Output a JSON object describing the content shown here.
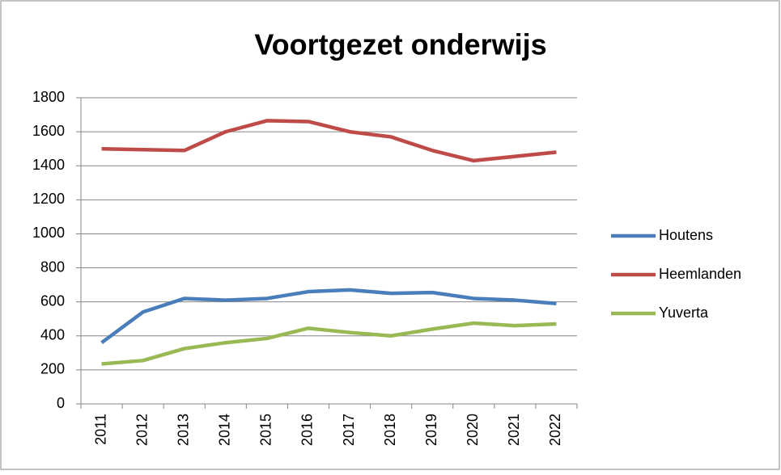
{
  "chart_data": {
    "type": "line",
    "title": "Voortgezet onderwijs",
    "categories": [
      "2011",
      "2012",
      "2013",
      "2014",
      "2015",
      "2016",
      "2017",
      "2018",
      "2019",
      "2020",
      "2021",
      "2022"
    ],
    "series": [
      {
        "name": "Houtens",
        "color": "#4a7ebb",
        "values": [
          360,
          540,
          620,
          610,
          620,
          660,
          670,
          650,
          655,
          620,
          610,
          590
        ]
      },
      {
        "name": "Heemlanden",
        "color": "#be4b48",
        "values": [
          1500,
          1495,
          1490,
          1600,
          1665,
          1660,
          1600,
          1570,
          1490,
          1430,
          1455,
          1480
        ]
      },
      {
        "name": "Yuverta",
        "color": "#98b954",
        "values": [
          235,
          255,
          325,
          360,
          385,
          445,
          420,
          400,
          440,
          475,
          460,
          470
        ]
      }
    ],
    "ylim": [
      0,
      1800
    ],
    "yticks": [
      0,
      200,
      400,
      600,
      800,
      1000,
      1200,
      1400,
      1600,
      1800
    ],
    "grid": true,
    "legend": "right"
  }
}
